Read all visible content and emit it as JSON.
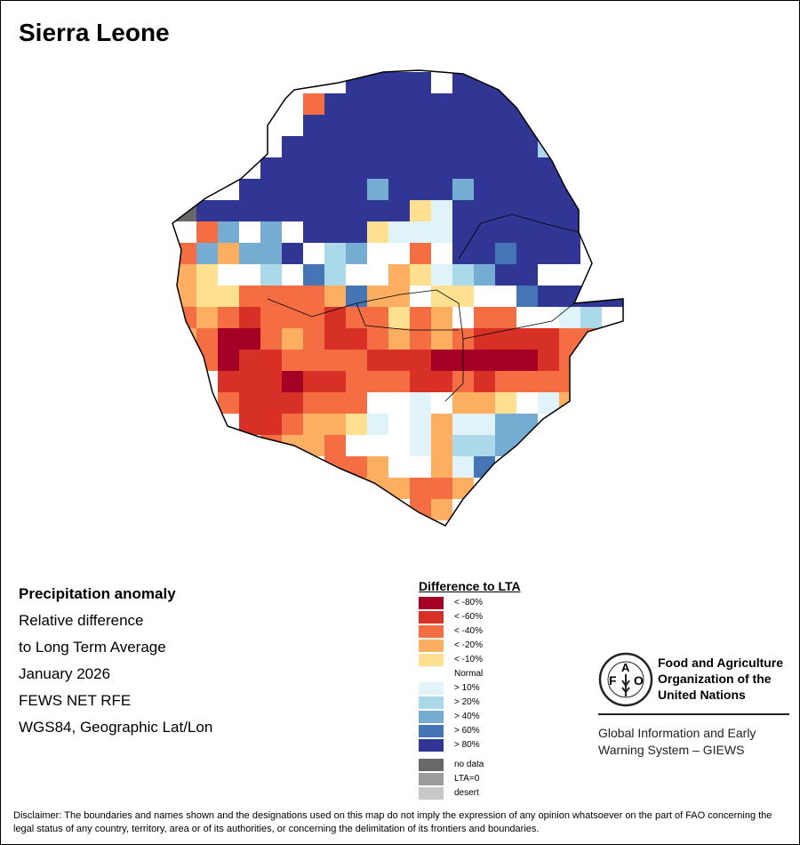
{
  "title": "Sierra Leone",
  "info": {
    "heading": "Precipitation anomaly",
    "lines": [
      "Relative difference",
      "to Long Term Average",
      "January 2026",
      "FEWS NET RFE",
      "WGS84, Geographic Lat/Lon"
    ]
  },
  "legend": {
    "title": "Difference to LTA",
    "items": [
      {
        "code": "t",
        "label": "< -80%",
        "color": "#a50026"
      },
      {
        "code": "s",
        "label": "< -60%",
        "color": "#d73027"
      },
      {
        "code": "r",
        "label": "< -40%",
        "color": "#f46d43"
      },
      {
        "code": "q",
        "label": "< -20%",
        "color": "#fdae61"
      },
      {
        "code": "p",
        "label": "< -10%",
        "color": "#fee090"
      },
      {
        "code": "N",
        "label": "Normal",
        "color": "#ffffff"
      },
      {
        "code": "A",
        "label": "> 10%",
        "color": "#e0f3f8"
      },
      {
        "code": "B",
        "label": "> 20%",
        "color": "#abd9e9"
      },
      {
        "code": "C",
        "label": "> 40%",
        "color": "#74add1"
      },
      {
        "code": "D",
        "label": "> 60%",
        "color": "#4575b4"
      },
      {
        "code": "E",
        "label": "> 80%",
        "color": "#313695"
      },
      {
        "code": "g",
        "label": "no data",
        "color": "#686868"
      },
      {
        "code": "h",
        "label": "LTA=0",
        "color": "#9c9c9c"
      },
      {
        "code": "d",
        "label": "desert",
        "color": "#c8c8c8"
      }
    ]
  },
  "map_grid": [
    "........EEEENEEE.....",
    "......rEEEEEEEEEE....",
    "......EEEEEEEEEEE....",
    "....NEEEEEEEEEEEEB...",
    "....EEEEEEEEEEEEEEE..",
    "...EEEEEECEEECEEEEE..",
    "gEEEEEEEEEEpAEEEEEE..",
    ".rCNCNEEEpAAAEEEEEE..",
    "rCqCCENBCNNrNEEDEEE..",
    "qpNNBNDBNNqpABCEE....",
    "qpprrrrqDqqNppNNDEEEE",
    "rqrsrrrsrrprqNrrNNAB.",
    "qrttrqrssrqrqrssssrr.",
    ".rtssrrrrssstttttsr..",
    "..ssstssrrrssrsrrrr..",
    "..rsssrrrNNANqqpNAq..",
    "...ssrqqpANAqAACC....",
    "....rqqrNNNAqBBCC....",
    ".......rrqNNqADN.....",
    "........qqqrrq.......",
    "...........rq........"
  ],
  "fao": {
    "name_lines": [
      "Food and Agriculture",
      "Organization of the",
      "United Nations"
    ],
    "logo_letters": "FAO FIAT PANIS",
    "giews_lines": [
      "Global Information and Early",
      "Warning System – GIEWS"
    ]
  },
  "disclaimer": "Disclaimer: The boundaries and names shown and the designations used on this map do not imply the expression of any opinion whatsoever on the part of FAO concerning the legal status of any country, territory, area or of its authorities, or concerning the delimitation of its frontiers and boundaries."
}
